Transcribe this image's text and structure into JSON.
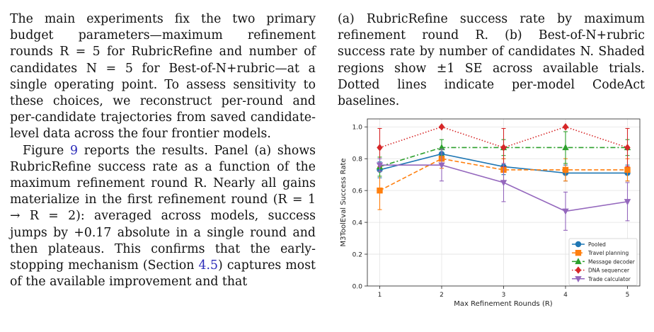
{
  "left_column": {
    "p1": "The main experiments fix the two primary budget parameters—maximum refinement rounds R = 5 for RubricRefine and number of candidates N = 5 for Best-of-N+rubric—at a single operating point. To assess sensitivity to these choices, we reconstruct per-round and per-candidate trajectories from saved candidate-level data across the four frontier models.",
    "p2_a": "Figure ",
    "p2_ref": "9",
    "p2_b": " reports the results. Panel (a) shows RubricRefine success rate as a function of the maximum refinement round R. Nearly all gains materialize in the first refinement round (R = 1 → R = 2): averaged across models, success jumps by +0.17 absolute in a single round and then plateaus. This confirms that the early-stopping mechanism (Section ",
    "p2_ref2": "4.5",
    "p2_c": ") captures most of the available improvement and that"
  },
  "caption": {
    "text": "(a) RubricRefine success rate by maximum refinement round R. (b) Best-of-N+rubric success rate by number of candidates N. Shaded regions show ±1 SE across available trials. Dotted lines indicate per-model CodeAct baselines."
  },
  "chart_data": {
    "type": "line",
    "x": [
      1,
      2,
      3,
      4,
      5
    ],
    "xlabel": "Max Refinement Rounds (R)",
    "ylabel": "M3ToolEval Success Rate",
    "xticks": [
      "1",
      "2",
      "3",
      "4",
      "5"
    ],
    "yticks": [
      "0.0",
      "0.2",
      "0.4",
      "0.6",
      "0.8",
      "1.0"
    ],
    "ylim": [
      0,
      1.05
    ],
    "grid": true,
    "legend_position": "lower-right",
    "series": [
      {
        "name": "Pooled",
        "values": [
          0.73,
          0.83,
          0.75,
          0.71,
          0.71
        ],
        "err": [
          0.05,
          0.04,
          0.05,
          0.05,
          0.05
        ],
        "color": "#1f77b4",
        "dash": "solid",
        "marker": "circle"
      },
      {
        "name": "Travel planning",
        "values": [
          0.6,
          0.8,
          0.73,
          0.73,
          0.73
        ],
        "err": [
          0.12,
          0.06,
          0.07,
          0.07,
          0.07
        ],
        "color": "#ff7f0e",
        "dash": "dashed",
        "marker": "square"
      },
      {
        "name": "Message decoder",
        "values": [
          0.75,
          0.87,
          0.87,
          0.87,
          0.87
        ],
        "err": [
          0.06,
          0.05,
          0.05,
          0.1,
          0.05
        ],
        "color": "#2ca02c",
        "dash": "dashdot",
        "marker": "triangle-up"
      },
      {
        "name": "DNA sequencer",
        "values": [
          0.87,
          1.0,
          0.87,
          1.0,
          0.87
        ],
        "err": [
          0.12,
          0.0,
          0.12,
          0.0,
          0.12
        ],
        "color": "#d62728",
        "dash": "dotted",
        "marker": "diamond"
      },
      {
        "name": "Trade calculator",
        "values": [
          0.76,
          0.76,
          0.65,
          0.47,
          0.53
        ],
        "err": [
          0.04,
          0.1,
          0.12,
          0.12,
          0.12
        ],
        "color": "#9467bd",
        "dash": "solid",
        "marker": "triangle-down"
      }
    ]
  }
}
